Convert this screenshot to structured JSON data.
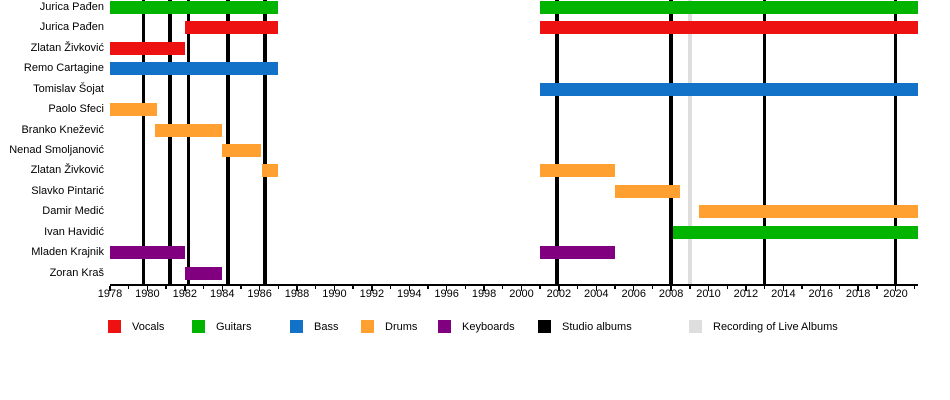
{
  "chart_data": {
    "type": "timeline",
    "title": "",
    "grid": false,
    "legend_position": "bottom",
    "x_axis": {
      "min": 1978,
      "max": 2021.2,
      "major_ticks": [
        1978,
        1980,
        1982,
        1984,
        1986,
        1988,
        1990,
        1992,
        1994,
        1996,
        1998,
        2000,
        2002,
        2004,
        2006,
        2008,
        2010,
        2012,
        2014,
        2016,
        2018,
        2020
      ],
      "minor_tick_step": 1
    },
    "colors": {
      "Vocals": "#ee1111",
      "Guitars": "#00b400",
      "Bass": "#1272c8",
      "Drums": "#ffa030",
      "Keyboards": "#800080",
      "studio_album": "#000000",
      "live_recording": "#dedede"
    },
    "members": [
      {
        "name": "Jurica Pađen",
        "role": "Guitars",
        "segments": [
          [
            1978,
            1987
          ],
          [
            2001,
            2021.2
          ]
        ]
      },
      {
        "name": "Jurica Pađen",
        "role": "Vocals",
        "segments": [
          [
            1982,
            1987
          ],
          [
            2001,
            2021.2
          ]
        ]
      },
      {
        "name": "Zlatan Živković",
        "role": "Vocals",
        "segments": [
          [
            1978,
            1982
          ]
        ]
      },
      {
        "name": "Remo Cartagine",
        "role": "Bass",
        "segments": [
          [
            1978,
            1987
          ]
        ]
      },
      {
        "name": "Tomislav Šojat",
        "role": "Bass",
        "segments": [
          [
            2001,
            2021.2
          ]
        ]
      },
      {
        "name": "Paolo Sfeci",
        "role": "Drums",
        "segments": [
          [
            1978,
            1980.5
          ]
        ]
      },
      {
        "name": "Branko Knežević",
        "role": "Drums",
        "segments": [
          [
            1980.4,
            1984
          ]
        ]
      },
      {
        "name": "Nenad Smoljanović",
        "role": "Drums",
        "segments": [
          [
            1984,
            1986.1
          ]
        ]
      },
      {
        "name": "Zlatan Živković",
        "role": "Drums",
        "segments": [
          [
            1986.1,
            1987
          ],
          [
            2001,
            2005
          ]
        ]
      },
      {
        "name": "Slavko Pintarić",
        "role": "Drums",
        "segments": [
          [
            2005,
            2008.45
          ]
        ]
      },
      {
        "name": "Damir Medić",
        "role": "Drums",
        "segments": [
          [
            2009.5,
            2021.2
          ]
        ]
      },
      {
        "name": "Ivan Havidić",
        "role": "Guitars",
        "segments": [
          [
            2008.1,
            2021.2
          ]
        ]
      },
      {
        "name": "Mladen Krajnik",
        "role": "Keyboards",
        "segments": [
          [
            1978,
            1982
          ],
          [
            2001,
            2005
          ]
        ]
      },
      {
        "name": "Zoran Kraš",
        "role": "Keyboards",
        "segments": [
          [
            1982,
            1984
          ]
        ]
      }
    ],
    "studio_album_years": [
      1979.8,
      1981.2,
      1982.2,
      1984.3,
      1986.3,
      2001.9,
      2008,
      2013,
      2020
    ],
    "live_album_recording_years": [
      2009
    ],
    "legend": [
      {
        "label": "Vocals",
        "color": "#ee1111"
      },
      {
        "label": "Guitars",
        "color": "#00b400"
      },
      {
        "label": "Bass",
        "color": "#1272c8"
      },
      {
        "label": "Drums",
        "color": "#ffa030"
      },
      {
        "label": "Keyboards",
        "color": "#800080"
      },
      {
        "label": "Studio albums",
        "color": "#000000"
      },
      {
        "label": "Recording of Live Albums",
        "color": "#dedede"
      }
    ]
  }
}
